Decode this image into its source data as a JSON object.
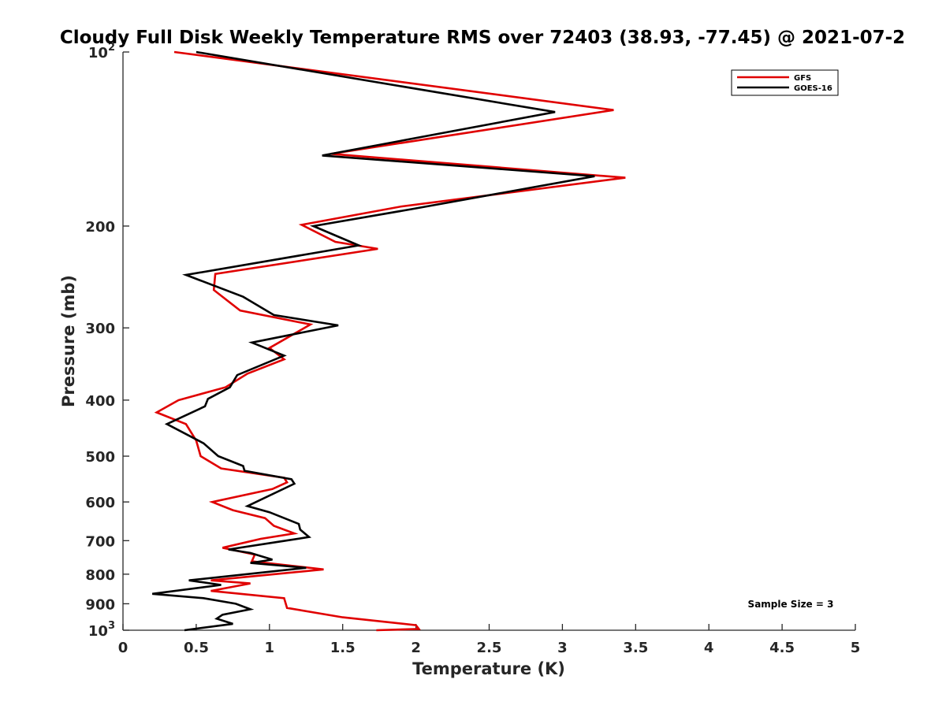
{
  "chart_data": {
    "type": "line",
    "title": "Cloudy Full Disk Weekly Temperature RMS over 72403 (38.93, -77.45) @ 2021-07-2",
    "xlabel": "Temperature (K)",
    "ylabel": "Pressure (mb)",
    "xlim": [
      0,
      5
    ],
    "ylim": [
      100,
      1000
    ],
    "y_scale": "log",
    "y_reversed": true,
    "x_ticks": [
      0,
      0.5,
      1,
      1.5,
      2,
      2.5,
      3,
      3.5,
      4,
      4.5,
      5
    ],
    "x_tick_labels": [
      "0",
      "0.5",
      "1",
      "1.5",
      "2",
      "2.5",
      "3",
      "3.5",
      "4",
      "4.5",
      "5"
    ],
    "y_ticks": [
      100,
      200,
      300,
      400,
      500,
      600,
      700,
      800,
      900,
      1000
    ],
    "y_tick_labels": [
      {
        "base": "10",
        "exp": "2"
      },
      {
        "base": "200",
        "exp": ""
      },
      {
        "base": "300",
        "exp": ""
      },
      {
        "base": "400",
        "exp": ""
      },
      {
        "base": "500",
        "exp": ""
      },
      {
        "base": "600",
        "exp": ""
      },
      {
        "base": "700",
        "exp": ""
      },
      {
        "base": "800",
        "exp": ""
      },
      {
        "base": "900",
        "exp": ""
      },
      {
        "base": "10",
        "exp": "3"
      }
    ],
    "grid": false,
    "legend_position": "top-right",
    "annotation": "Sample Size = 3",
    "series": [
      {
        "name": "GFS",
        "color": "#e00000",
        "points": [
          [
            0.35,
            100
          ],
          [
            3.35,
            126
          ],
          [
            1.42,
            150
          ],
          [
            3.43,
            165
          ],
          [
            1.9,
            185
          ],
          [
            1.22,
            199
          ],
          [
            1.45,
            213
          ],
          [
            1.74,
            219
          ],
          [
            0.63,
            242
          ],
          [
            0.62,
            258
          ],
          [
            0.8,
            280
          ],
          [
            1.28,
            296
          ],
          [
            1.0,
            325
          ],
          [
            1.1,
            340
          ],
          [
            0.85,
            360
          ],
          [
            0.7,
            380
          ],
          [
            0.38,
            400
          ],
          [
            0.23,
            420
          ],
          [
            0.43,
            440
          ],
          [
            0.5,
            470
          ],
          [
            0.53,
            500
          ],
          [
            0.67,
            525
          ],
          [
            1.1,
            545
          ],
          [
            1.12,
            555
          ],
          [
            1.02,
            570
          ],
          [
            0.61,
            600
          ],
          [
            0.75,
            620
          ],
          [
            0.97,
            640
          ],
          [
            1.03,
            660
          ],
          [
            1.17,
            680
          ],
          [
            0.94,
            695
          ],
          [
            0.68,
            720
          ],
          [
            0.9,
            740
          ],
          [
            0.88,
            760
          ],
          [
            1.37,
            785
          ],
          [
            0.6,
            820
          ],
          [
            0.87,
            830
          ],
          [
            0.6,
            855
          ],
          [
            1.1,
            880
          ],
          [
            1.12,
            915
          ],
          [
            1.5,
            950
          ],
          [
            2.0,
            980
          ],
          [
            2.02,
            995
          ],
          [
            1.73,
            1000
          ]
        ]
      },
      {
        "name": "GOES-16",
        "color": "#000000",
        "points": [
          [
            0.5,
            100
          ],
          [
            2.95,
            127
          ],
          [
            1.36,
            151
          ],
          [
            3.22,
            164
          ],
          [
            1.97,
            187
          ],
          [
            1.3,
            200
          ],
          [
            1.61,
            216
          ],
          [
            0.43,
            243
          ],
          [
            0.82,
            265
          ],
          [
            1.03,
            285
          ],
          [
            1.47,
            297
          ],
          [
            0.88,
            318
          ],
          [
            1.1,
            335
          ],
          [
            0.78,
            362
          ],
          [
            0.73,
            380
          ],
          [
            0.58,
            398
          ],
          [
            0.56,
            410
          ],
          [
            0.3,
            440
          ],
          [
            0.55,
            475
          ],
          [
            0.65,
            500
          ],
          [
            0.82,
            520
          ],
          [
            0.83,
            530
          ],
          [
            1.15,
            548
          ],
          [
            1.17,
            558
          ],
          [
            0.85,
            610
          ],
          [
            1.0,
            625
          ],
          [
            1.2,
            655
          ],
          [
            1.21,
            670
          ],
          [
            1.27,
            690
          ],
          [
            1.08,
            702
          ],
          [
            0.72,
            725
          ],
          [
            0.87,
            735
          ],
          [
            1.02,
            755
          ],
          [
            0.87,
            765
          ],
          [
            1.25,
            780
          ],
          [
            0.45,
            820
          ],
          [
            0.67,
            835
          ],
          [
            0.2,
            865
          ],
          [
            0.55,
            880
          ],
          [
            0.77,
            900
          ],
          [
            0.87,
            920
          ],
          [
            0.68,
            940
          ],
          [
            0.64,
            955
          ],
          [
            0.75,
            975
          ],
          [
            0.42,
            1000
          ]
        ]
      }
    ]
  }
}
